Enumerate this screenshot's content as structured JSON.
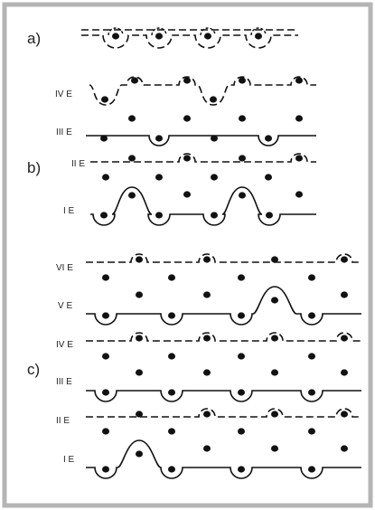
{
  "panel_labels": {
    "a": "a)",
    "b": "b)",
    "c": "c)"
  },
  "layer_labels": {
    "b": [
      "IV E",
      "III E",
      "II E",
      "I E"
    ],
    "c": [
      "VI E",
      "V E",
      "IV E",
      "III E",
      "II E",
      "I E"
    ]
  },
  "colors": {
    "background": "#ffffff",
    "frame": "#b4b4b4",
    "ink": "#111111"
  }
}
